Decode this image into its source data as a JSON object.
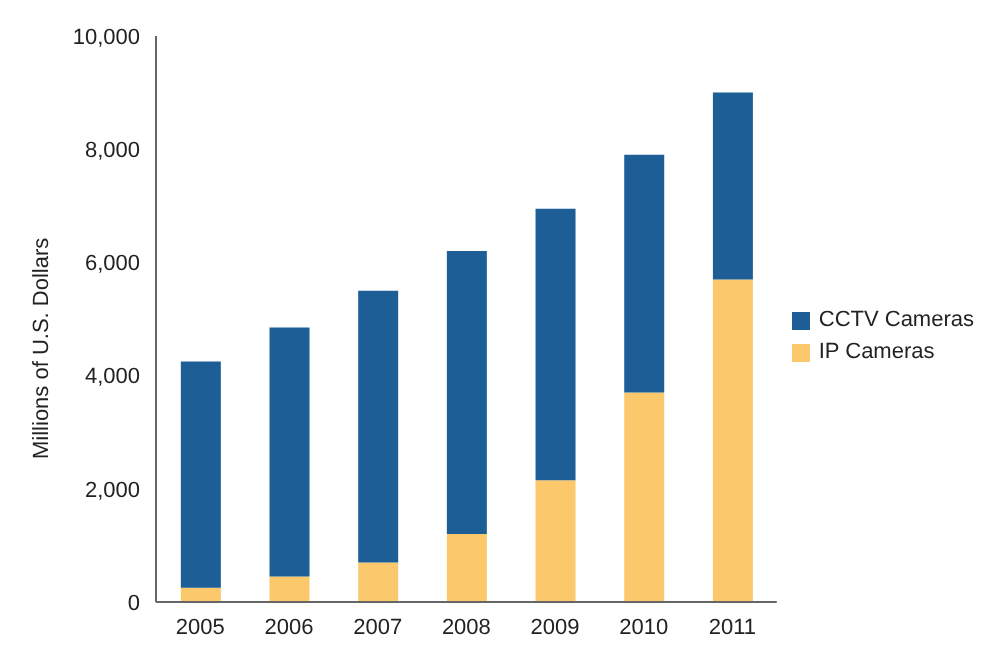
{
  "chart_data": {
    "type": "bar",
    "stacked": true,
    "ylabel": "Millions of U.S. Dollars",
    "categories": [
      "2005",
      "2006",
      "2007",
      "2008",
      "2009",
      "2010",
      "2011"
    ],
    "series": [
      {
        "name": "IP Cameras",
        "color": "#fbc96b",
        "values": [
          250,
          450,
          700,
          1200,
          2150,
          3700,
          5700
        ]
      },
      {
        "name": "CCTV Cameras",
        "color": "#1d5e97",
        "values": [
          4000,
          4400,
          4800,
          5000,
          4800,
          4200,
          3300
        ]
      }
    ],
    "ylim": [
      0,
      10000
    ],
    "yticks": [
      0,
      {
        "value": 2000,
        "label": "2,000"
      },
      {
        "value": 4000,
        "label": "4,000"
      },
      {
        "value": 6000,
        "label": "6,000"
      },
      {
        "value": 8000,
        "label": "8,000"
      },
      {
        "value": 10000,
        "label": "10,000"
      }
    ],
    "grid": false,
    "legend": "right"
  }
}
